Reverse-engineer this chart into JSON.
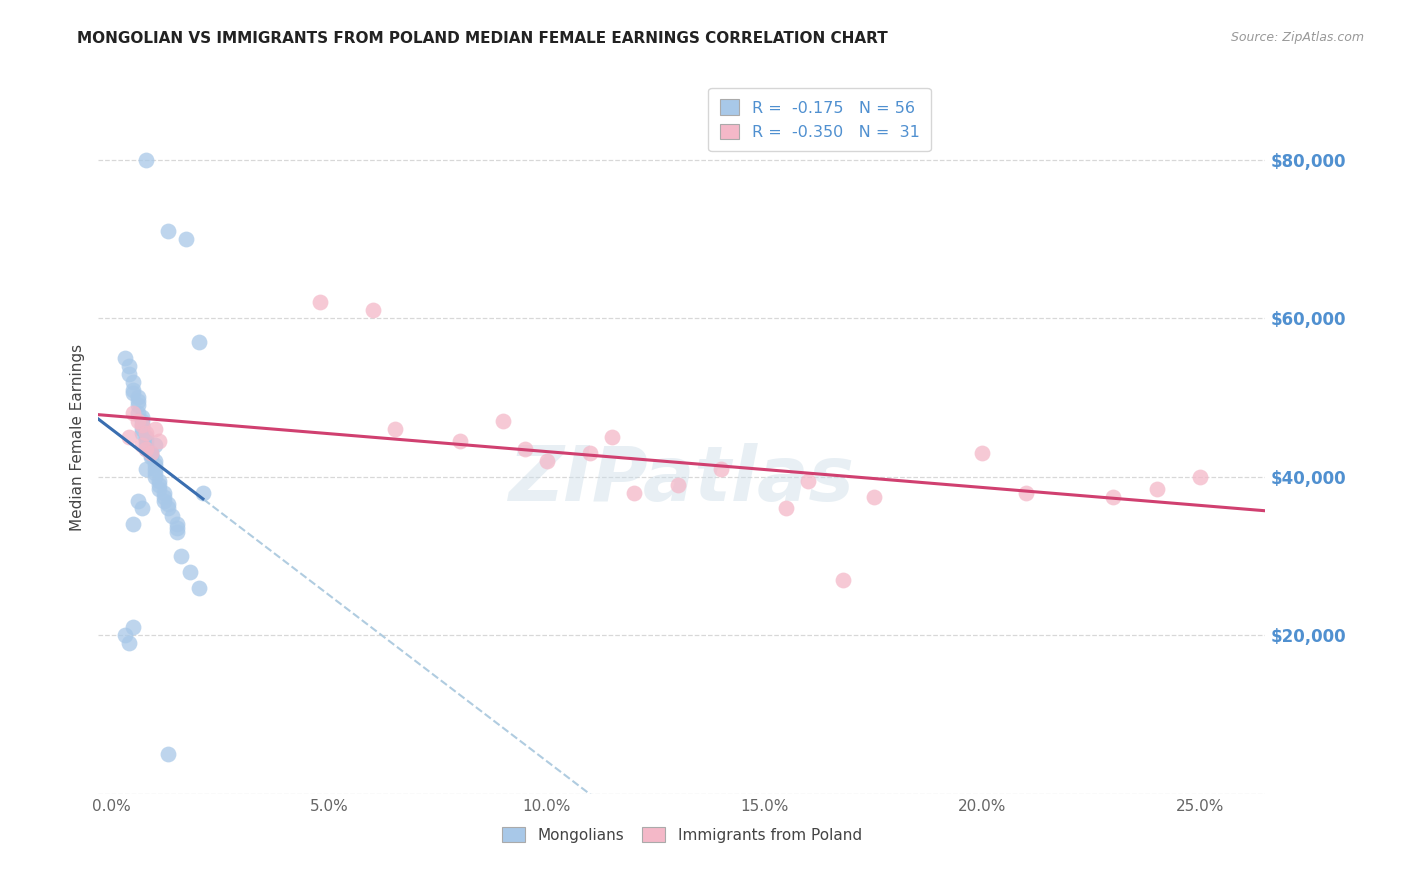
{
  "title": "MONGOLIAN VS IMMIGRANTS FROM POLAND MEDIAN FEMALE EARNINGS CORRELATION CHART",
  "source": "Source: ZipAtlas.com",
  "ylabel": "Median Female Earnings",
  "xlabel_vals": [
    0.0,
    0.05,
    0.1,
    0.15,
    0.2,
    0.25
  ],
  "xlabel_ticks": [
    "0.0%",
    "5.0%",
    "10.0%",
    "15.0%",
    "20.0%",
    "25.0%"
  ],
  "right_ytick_labels": [
    "$80,000",
    "$60,000",
    "$40,000",
    "$20,000"
  ],
  "right_ytick_vals": [
    80000,
    60000,
    40000,
    20000
  ],
  "grid_yticks": [
    0,
    20000,
    40000,
    60000,
    80000
  ],
  "ylim": [
    0,
    90000
  ],
  "xlim": [
    -0.003,
    0.265
  ],
  "blue_scatter_color": "#a8c8e8",
  "pink_scatter_color": "#f4b8c8",
  "blue_line_color": "#3a6eb0",
  "pink_line_color": "#d04070",
  "dashed_color": "#b0cce0",
  "grid_color": "#d8d8d8",
  "title_color": "#222222",
  "right_axis_color": "#5090d0",
  "mongolian_x": [
    0.008,
    0.013,
    0.017,
    0.02,
    0.003,
    0.004,
    0.004,
    0.005,
    0.005,
    0.005,
    0.006,
    0.006,
    0.006,
    0.006,
    0.007,
    0.007,
    0.007,
    0.007,
    0.007,
    0.008,
    0.008,
    0.008,
    0.008,
    0.009,
    0.009,
    0.009,
    0.01,
    0.01,
    0.01,
    0.01,
    0.01,
    0.011,
    0.011,
    0.011,
    0.012,
    0.012,
    0.012,
    0.013,
    0.013,
    0.014,
    0.015,
    0.015,
    0.015,
    0.016,
    0.018,
    0.02,
    0.021,
    0.003,
    0.004,
    0.005,
    0.005,
    0.006,
    0.007,
    0.008,
    0.01,
    0.013
  ],
  "mongolian_y": [
    80000,
    71000,
    70000,
    57000,
    55000,
    54000,
    53000,
    52000,
    51000,
    50500,
    50000,
    49500,
    49000,
    48000,
    47500,
    47000,
    46500,
    46000,
    45500,
    45000,
    44500,
    44000,
    43500,
    43000,
    42800,
    42500,
    42000,
    41500,
    41000,
    40500,
    40000,
    39500,
    39000,
    38500,
    38000,
    37500,
    37000,
    36500,
    36000,
    35000,
    34000,
    33500,
    33000,
    30000,
    28000,
    26000,
    38000,
    20000,
    19000,
    21000,
    34000,
    37000,
    36000,
    41000,
    44000,
    5000
  ],
  "poland_x": [
    0.004,
    0.005,
    0.006,
    0.007,
    0.007,
    0.008,
    0.008,
    0.009,
    0.01,
    0.011,
    0.048,
    0.06,
    0.065,
    0.08,
    0.09,
    0.095,
    0.1,
    0.11,
    0.115,
    0.12,
    0.13,
    0.14,
    0.155,
    0.16,
    0.175,
    0.2,
    0.21,
    0.23,
    0.24,
    0.25,
    0.168
  ],
  "poland_y": [
    45000,
    48000,
    47000,
    44000,
    46500,
    43500,
    45500,
    43000,
    46000,
    44500,
    62000,
    61000,
    46000,
    44500,
    47000,
    43500,
    42000,
    43000,
    45000,
    38000,
    39000,
    41000,
    36000,
    39500,
    37500,
    43000,
    38000,
    37500,
    38500,
    40000,
    27000
  ],
  "R_mongol": -0.175,
  "N_mongol": 56,
  "R_poland": -0.35,
  "N_poland": 31
}
